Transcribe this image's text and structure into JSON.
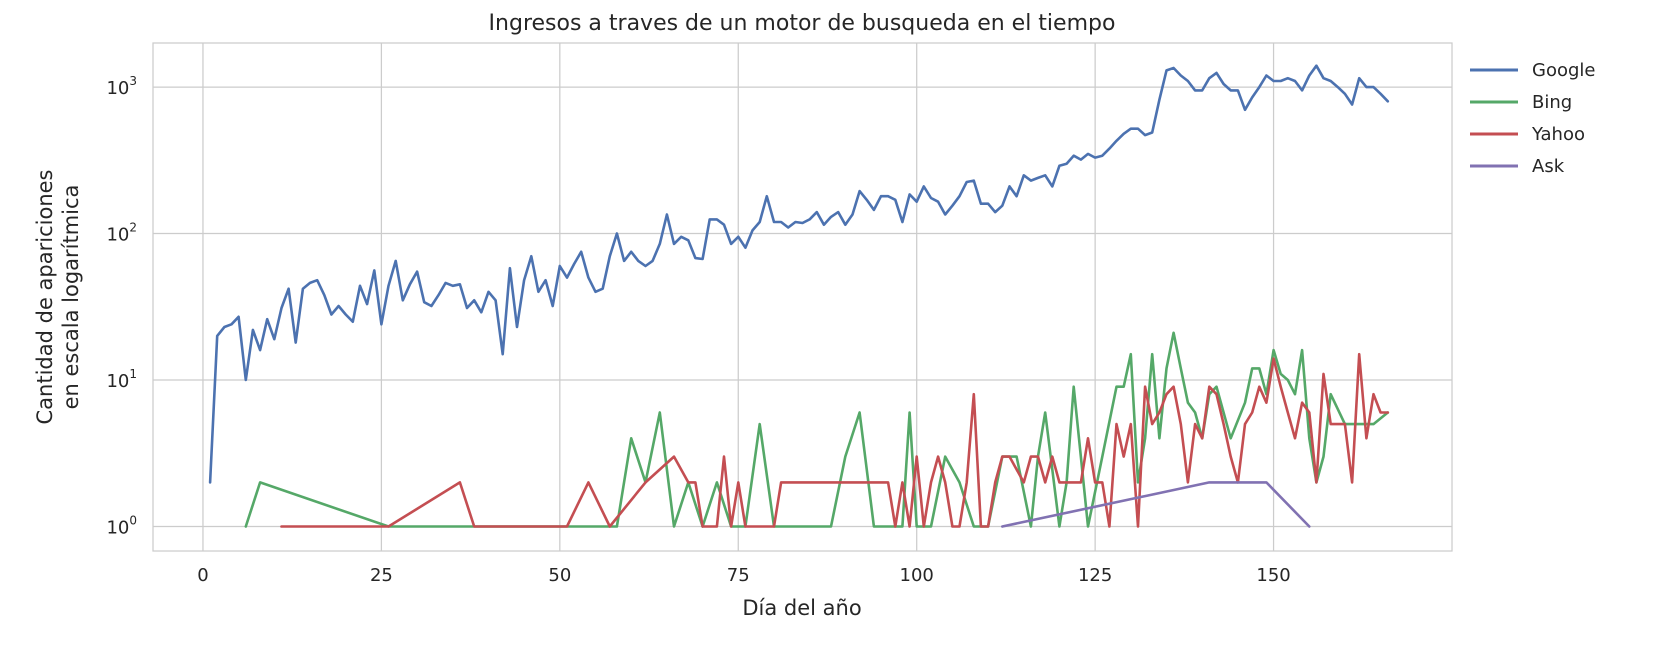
{
  "chart_data": {
    "type": "line",
    "title": "Ingresos a traves de un motor de busqueda en el tiempo",
    "xlabel": "Día del año",
    "ylabel_lines": [
      "Cantidad de apariciones",
      "en escala logarítmica"
    ],
    "xlim": [
      -7,
      175
    ],
    "ylim": [
      0.68,
      2000
    ],
    "yscale": "log",
    "xticks": [
      0,
      25,
      50,
      75,
      100,
      125,
      150
    ],
    "yticks": [
      {
        "value": 1,
        "base": "10",
        "exp": "0"
      },
      {
        "value": 10,
        "base": "10",
        "exp": "1"
      },
      {
        "value": 100,
        "base": "10",
        "exp": "2"
      },
      {
        "value": 1000,
        "base": "10",
        "exp": "3"
      }
    ],
    "grid": true,
    "legend_position": "outside-right",
    "series": [
      {
        "name": "Google",
        "color": "#4c72b0",
        "x": [
          1,
          2,
          3,
          4,
          5,
          6,
          7,
          8,
          9,
          10,
          11,
          12,
          13,
          14,
          15,
          16,
          17,
          18,
          19,
          20,
          21,
          22,
          23,
          24,
          25,
          26,
          27,
          28,
          29,
          30,
          31,
          32,
          33,
          34,
          35,
          36,
          37,
          38,
          39,
          40,
          41,
          42,
          43,
          44,
          45,
          46,
          47,
          48,
          49,
          50,
          51,
          52,
          53,
          54,
          55,
          56,
          57,
          58,
          59,
          60,
          61,
          62,
          63,
          64,
          65,
          66,
          67,
          68,
          69,
          70,
          71,
          72,
          73,
          74,
          75,
          76,
          77,
          78,
          79,
          80,
          81,
          82,
          83,
          84,
          85,
          86,
          87,
          88,
          89,
          90,
          91,
          92,
          93,
          94,
          95,
          96,
          97,
          98,
          99,
          100,
          101,
          102,
          103,
          104,
          105,
          106,
          107,
          108,
          109,
          110,
          111,
          112,
          113,
          114,
          115,
          116,
          117,
          118,
          119,
          120,
          121,
          122,
          123,
          124,
          125,
          126,
          127,
          128,
          129,
          130,
          131,
          132,
          133,
          134,
          135,
          136,
          137,
          138,
          139,
          140,
          141,
          142,
          143,
          144,
          145,
          146,
          147,
          148,
          149,
          150,
          151,
          152,
          153,
          154,
          155,
          156,
          157,
          158,
          159,
          160,
          161,
          162,
          163,
          164,
          165,
          166
        ],
        "values": [
          2,
          20,
          23,
          24,
          27,
          10,
          22,
          16,
          26,
          19,
          31,
          42,
          18,
          42,
          46,
          48,
          38,
          28,
          32,
          28,
          25,
          44,
          33,
          56,
          24,
          44,
          65,
          35,
          45,
          55,
          34,
          32,
          38,
          46,
          44,
          45,
          31,
          35,
          29,
          40,
          35,
          15,
          58,
          23,
          48,
          70,
          40,
          48,
          32,
          60,
          50,
          62,
          75,
          50,
          40,
          42,
          70,
          100,
          65,
          75,
          65,
          60,
          65,
          85,
          135,
          85,
          95,
          90,
          68,
          67,
          125,
          125,
          115,
          85,
          95,
          80,
          105,
          120,
          180,
          120,
          120,
          110,
          120,
          118,
          125,
          140,
          115,
          130,
          140,
          115,
          135,
          195,
          170,
          145,
          180,
          180,
          170,
          120,
          185,
          165,
          210,
          175,
          165,
          135,
          155,
          180,
          225,
          230,
          160,
          160,
          140,
          155,
          210,
          180,
          250,
          230,
          240,
          250,
          210,
          290,
          300,
          340,
          320,
          350,
          330,
          340,
          380,
          430,
          480,
          520,
          520,
          470,
          490,
          820,
          1300,
          1350,
          1200,
          1100,
          950,
          950,
          1150,
          1250,
          1050,
          950,
          950,
          700,
          850,
          1000,
          1200,
          1100,
          1100,
          1150,
          1100,
          950,
          1200,
          1400,
          1150,
          1100,
          1000,
          900,
          760,
          1150,
          1000,
          1000,
          900,
          800
        ]
      },
      {
        "name": "Bing",
        "color": "#55a868",
        "x": [
          6,
          8,
          26,
          51,
          56,
          58,
          60,
          62,
          64,
          66,
          68,
          70,
          72,
          74,
          76,
          78,
          80,
          82,
          84,
          86,
          88,
          90,
          92,
          94,
          96,
          98,
          99,
          100,
          102,
          104,
          106,
          108,
          110,
          112,
          114,
          116,
          117,
          118,
          120,
          121,
          122,
          124,
          126,
          128,
          129,
          130,
          131,
          132,
          133,
          134,
          135,
          136,
          137,
          138,
          139,
          140,
          141,
          142,
          144,
          146,
          147,
          148,
          149,
          150,
          151,
          152,
          153,
          154,
          155,
          156,
          157,
          158,
          160,
          162,
          164,
          166
        ],
        "values": [
          1,
          2,
          1,
          1,
          1,
          1,
          4,
          2,
          6,
          1,
          2,
          1,
          2,
          1,
          1,
          5,
          1,
          1,
          1,
          1,
          1,
          3,
          6,
          1,
          1,
          1,
          6,
          1,
          1,
          3,
          2,
          1,
          1,
          3,
          3,
          1,
          3,
          6,
          1,
          2,
          9,
          1,
          3,
          9,
          9,
          15,
          2,
          4,
          15,
          4,
          12,
          21,
          12,
          7,
          6,
          4,
          8,
          9,
          4,
          7,
          12,
          12,
          8,
          16,
          11,
          10,
          8,
          16,
          4,
          2,
          3,
          8,
          5,
          5,
          5,
          6
        ]
      },
      {
        "name": "Yahoo",
        "color": "#c44e52",
        "x": [
          11,
          26,
          36,
          38,
          41,
          45,
          51,
          54,
          57,
          62,
          66,
          68,
          69,
          70,
          71,
          72,
          73,
          74,
          75,
          76,
          78,
          80,
          81,
          84,
          86,
          89,
          92,
          95,
          96,
          97,
          98,
          99,
          100,
          101,
          102,
          103,
          104,
          105,
          106,
          107,
          108,
          109,
          110,
          111,
          112,
          113,
          115,
          116,
          117,
          118,
          119,
          120,
          121,
          122,
          123,
          124,
          125,
          126,
          127,
          128,
          129,
          130,
          131,
          132,
          133,
          134,
          135,
          136,
          137,
          138,
          139,
          140,
          141,
          142,
          143,
          144,
          145,
          146,
          147,
          148,
          149,
          150,
          151,
          152,
          153,
          154,
          155,
          156,
          157,
          158,
          159,
          160,
          161,
          162,
          163,
          164,
          165,
          166
        ],
        "values": [
          1,
          1,
          2,
          1,
          1,
          1,
          1,
          2,
          1,
          2,
          3,
          2,
          2,
          1,
          1,
          1,
          3,
          1,
          2,
          1,
          1,
          1,
          2,
          2,
          2,
          2,
          2,
          2,
          2,
          1,
          2,
          1,
          3,
          1,
          2,
          3,
          2,
          1,
          1,
          2,
          8,
          1,
          1,
          2,
          3,
          3,
          2,
          3,
          3,
          2,
          3,
          2,
          2,
          2,
          2,
          4,
          2,
          2,
          1,
          5,
          3,
          5,
          1,
          9,
          5,
          6,
          8,
          9,
          5,
          2,
          5,
          4,
          9,
          8,
          5,
          3,
          2,
          5,
          6,
          9,
          7,
          14,
          9,
          6,
          4,
          7,
          6,
          2,
          11,
          5,
          5,
          5,
          2,
          15,
          4,
          8,
          6,
          6
        ]
      },
      {
        "name": "Ask",
        "color": "#8172b2",
        "x": [
          112,
          141,
          149,
          155
        ],
        "values": [
          1,
          2,
          2,
          1
        ]
      }
    ]
  }
}
